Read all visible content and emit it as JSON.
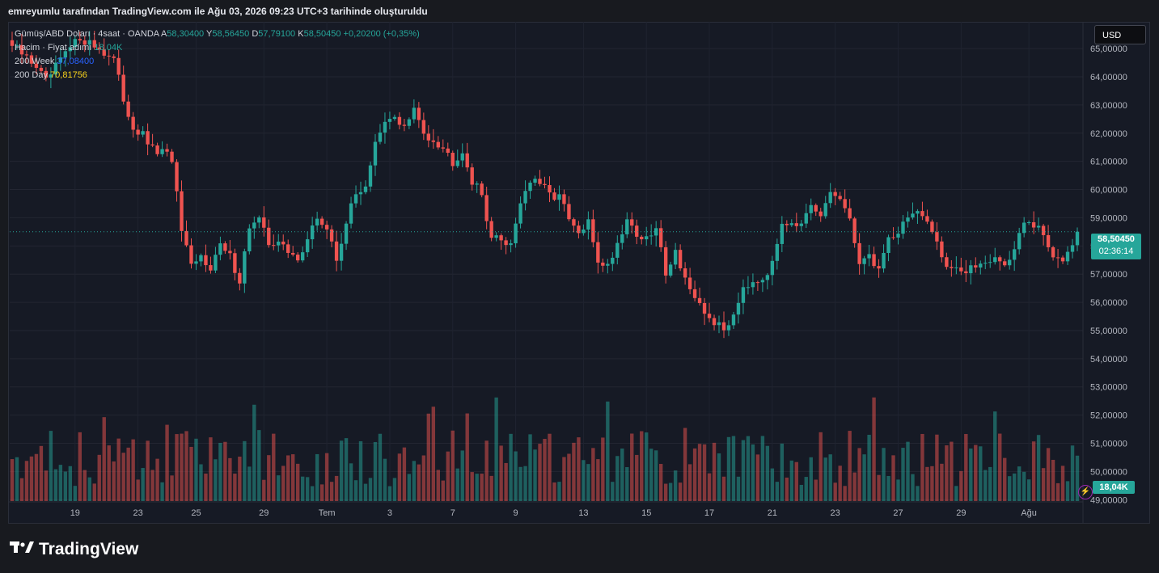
{
  "header": {
    "snapshot_text": "emreyumlu tarafından TradingView.com ile Ağu 03, 2026 09:23 UTC+3 tarihinde oluşturuldu"
  },
  "legend": {
    "symbol": "Gümüş/ABD Doları · 4saat · OANDA",
    "open_label": "A",
    "open": "58,30400",
    "high_label": "Y",
    "high": "58,56450",
    "low_label": "D",
    "low": "57,79100",
    "close_label": "K",
    "close": "58,50450",
    "change": "+0,20200 (+0,35%)",
    "volume_label": "Hacim · Fiyat adımı",
    "volume_value": "18,04K",
    "ma200w_label": "200 Week",
    "ma200w_value": "37,08400",
    "ma200d_label": "200 Day",
    "ma200d_value": "70,81756"
  },
  "currency_button": "USD",
  "last_price": {
    "price": "58,50450",
    "countdown": "02:36:14"
  },
  "last_volume": "18,04K",
  "brand": "TradingView",
  "colors": {
    "up": "#26a69a",
    "down": "#ef5350",
    "ma200d": "#f7d21b",
    "ma200w": "#2962ff"
  },
  "chart_data": {
    "type": "candlestick",
    "interval": "4h",
    "y_axis": {
      "ticks": [
        49,
        50,
        51,
        52,
        53,
        54,
        55,
        56,
        57,
        58,
        59,
        60,
        61,
        62,
        63,
        64,
        65
      ],
      "tick_labels": [
        "49,00000",
        "50,00000",
        "51,00000",
        "52,00000",
        "53,00000",
        "54,00000",
        "55,00000",
        "56,00000",
        "57,00000",
        "58,00000",
        "59,00000",
        "60,00000",
        "61,00000",
        "62,00000",
        "63,00000",
        "64,00000",
        "65,00000"
      ],
      "range": [
        48.95,
        65.95
      ]
    },
    "x_axis": {
      "labels": [
        "19",
        "23",
        "25",
        "29",
        "Tem",
        "3",
        "7",
        "9",
        "13",
        "15",
        "17",
        "21",
        "23",
        "27",
        "29",
        "Ağu"
      ],
      "label_candle_index": [
        13,
        26,
        38,
        52,
        65,
        78,
        91,
        104,
        118,
        131,
        144,
        157,
        170,
        183,
        196,
        210
      ]
    },
    "last_price": 58.5045,
    "anchors": [
      [
        0,
        65.1
      ],
      [
        2,
        64.8
      ],
      [
        5,
        64.4
      ],
      [
        7,
        63.8
      ],
      [
        10,
        64.6
      ],
      [
        14,
        65.4
      ],
      [
        18,
        65.0
      ],
      [
        21,
        64.6
      ],
      [
        23,
        63.2
      ],
      [
        25,
        62.2
      ],
      [
        27,
        61.9
      ],
      [
        29,
        61.4
      ],
      [
        31,
        61.3
      ],
      [
        33,
        61.1
      ],
      [
        35,
        58.5
      ],
      [
        37,
        57.2
      ],
      [
        39,
        57.6
      ],
      [
        41,
        57.3
      ],
      [
        43,
        58.0
      ],
      [
        45,
        57.6
      ],
      [
        47,
        56.8
      ],
      [
        49,
        58.7
      ],
      [
        51,
        58.9
      ],
      [
        53,
        58.1
      ],
      [
        55,
        58.2
      ],
      [
        57,
        57.7
      ],
      [
        59,
        57.6
      ],
      [
        61,
        58.2
      ],
      [
        63,
        59.0
      ],
      [
        65,
        58.6
      ],
      [
        67,
        57.5
      ],
      [
        69,
        58.9
      ],
      [
        71,
        59.8
      ],
      [
        73,
        60.2
      ],
      [
        75,
        61.6
      ],
      [
        77,
        62.3
      ],
      [
        79,
        62.6
      ],
      [
        81,
        62.2
      ],
      [
        83,
        62.8
      ],
      [
        85,
        62.0
      ],
      [
        87,
        61.8
      ],
      [
        89,
        61.5
      ],
      [
        91,
        61.0
      ],
      [
        93,
        61.4
      ],
      [
        95,
        60.3
      ],
      [
        97,
        59.8
      ],
      [
        99,
        58.3
      ],
      [
        101,
        58.2
      ],
      [
        103,
        58.1
      ],
      [
        105,
        59.6
      ],
      [
        107,
        60.3
      ],
      [
        109,
        60.2
      ],
      [
        111,
        59.8
      ],
      [
        113,
        59.8
      ],
      [
        115,
        58.9
      ],
      [
        117,
        58.4
      ],
      [
        119,
        58.8
      ],
      [
        121,
        57.5
      ],
      [
        123,
        57.3
      ],
      [
        125,
        58.1
      ],
      [
        127,
        59.0
      ],
      [
        129,
        58.4
      ],
      [
        131,
        58.2
      ],
      [
        133,
        58.6
      ],
      [
        135,
        57.1
      ],
      [
        137,
        57.8
      ],
      [
        139,
        56.9
      ],
      [
        141,
        56.0
      ],
      [
        143,
        55.6
      ],
      [
        145,
        55.3
      ],
      [
        147,
        55.0
      ],
      [
        149,
        55.6
      ],
      [
        151,
        56.6
      ],
      [
        153,
        56.8
      ],
      [
        155,
        56.9
      ],
      [
        157,
        57.3
      ],
      [
        159,
        58.9
      ],
      [
        161,
        58.9
      ],
      [
        163,
        58.7
      ],
      [
        165,
        59.3
      ],
      [
        167,
        59.0
      ],
      [
        169,
        59.9
      ],
      [
        171,
        59.7
      ],
      [
        173,
        58.8
      ],
      [
        175,
        57.5
      ],
      [
        177,
        57.6
      ],
      [
        179,
        57.2
      ],
      [
        181,
        58.3
      ],
      [
        183,
        58.5
      ],
      [
        185,
        59.1
      ],
      [
        187,
        59.2
      ],
      [
        189,
        58.7
      ],
      [
        191,
        58.2
      ],
      [
        193,
        57.3
      ],
      [
        195,
        57.3
      ],
      [
        197,
        57.0
      ],
      [
        199,
        57.3
      ],
      [
        201,
        57.5
      ],
      [
        203,
        57.6
      ],
      [
        205,
        57.3
      ],
      [
        207,
        57.9
      ],
      [
        209,
        58.8
      ],
      [
        211,
        58.7
      ],
      [
        213,
        58.4
      ],
      [
        215,
        57.5
      ],
      [
        217,
        57.6
      ],
      [
        219,
        58.2
      ],
      [
        220,
        58.5
      ]
    ],
    "volume_range": [
      0,
      1
    ],
    "volume_last": "18,04K"
  }
}
